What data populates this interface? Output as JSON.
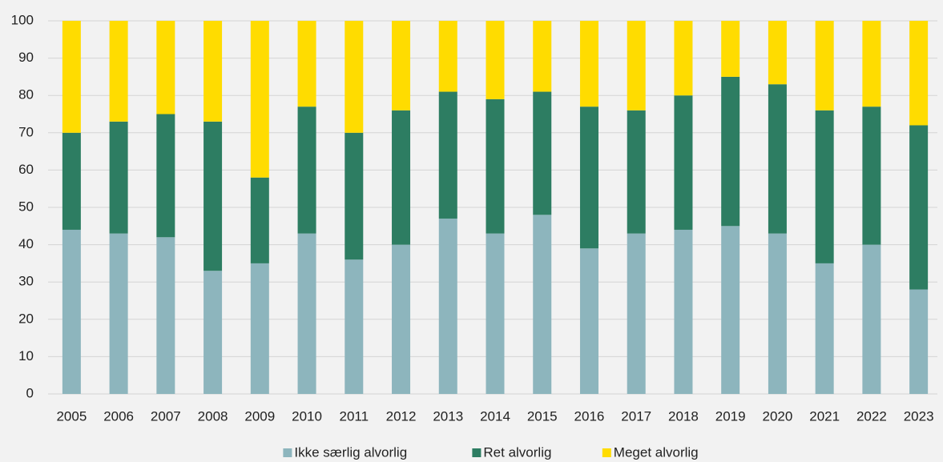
{
  "chart_data": {
    "type": "stacked_bar",
    "categories": [
      "2005",
      "2006",
      "2007",
      "2008",
      "2009",
      "2010",
      "2011",
      "2012",
      "2013",
      "2014",
      "2015",
      "2016",
      "2017",
      "2018",
      "2019",
      "2020",
      "2021",
      "2022",
      "2023"
    ],
    "series": [
      {
        "name": "Ikke særlig alvorlig",
        "color": "#8db5bd",
        "values": [
          44,
          43,
          42,
          33,
          35,
          43,
          36,
          40,
          47,
          43,
          48,
          39,
          43,
          44,
          45,
          43,
          35,
          40,
          28
        ]
      },
      {
        "name": "Ret alvorlig",
        "color": "#2d7d62",
        "values": [
          26,
          30,
          33,
          40,
          23,
          34,
          34,
          36,
          34,
          36,
          33,
          38,
          33,
          36,
          40,
          40,
          41,
          37,
          44
        ]
      },
      {
        "name": "Meget alvorlig",
        "color": "#ffdc00",
        "values": [
          30,
          27,
          25,
          27,
          42,
          23,
          30,
          24,
          19,
          21,
          19,
          23,
          24,
          20,
          15,
          17,
          24,
          23,
          28
        ]
      }
    ],
    "ylim": [
      0,
      100
    ],
    "yticks": [
      0,
      10,
      20,
      30,
      40,
      50,
      60,
      70,
      80,
      90,
      100
    ],
    "grid": true,
    "legend": "bottom"
  }
}
